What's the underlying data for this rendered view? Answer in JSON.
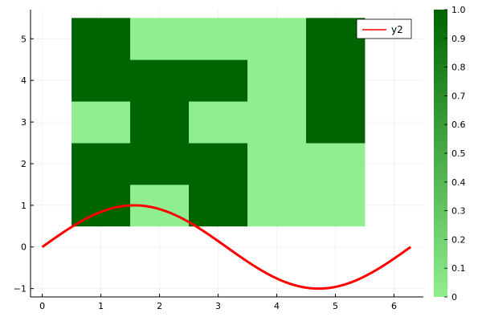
{
  "chart_data": {
    "type": "heatmap",
    "title": "",
    "xlabel": "",
    "ylabel": "",
    "grid": true,
    "heatmap": {
      "x": [
        1,
        2,
        3,
        4,
        5
      ],
      "y": [
        1,
        2,
        3,
        4,
        5
      ],
      "values": [
        [
          1,
          0,
          1,
          0,
          0
        ],
        [
          1,
          1,
          1,
          0,
          0
        ],
        [
          0,
          1,
          0,
          0,
          1
        ],
        [
          1,
          1,
          1,
          0,
          1
        ],
        [
          1,
          0,
          0,
          0,
          1
        ]
      ],
      "color_low": "#90ee90",
      "color_high": "#006400",
      "clim": [
        0,
        1
      ]
    },
    "series": [
      {
        "name": "y2",
        "type": "line",
        "function": "sin(x)",
        "x_range": [
          0,
          6.283
        ],
        "color": "#ff0000"
      }
    ],
    "xlim": [
      -0.2,
      6.5
    ],
    "ylim": [
      -1.2,
      5.7
    ],
    "xticks": [
      0,
      1,
      2,
      3,
      4,
      5,
      6
    ],
    "yticks": [
      -1,
      0,
      1,
      2,
      3,
      4,
      5
    ],
    "legend": {
      "position": "top-right",
      "entries": [
        "y2"
      ]
    },
    "colorbar": {
      "ticks": [
        "0",
        "0.1",
        "0.2",
        "0.3",
        "0.4",
        "0.5",
        "0.6",
        "0.7",
        "0.8",
        "0.9",
        "1.0"
      ]
    }
  }
}
